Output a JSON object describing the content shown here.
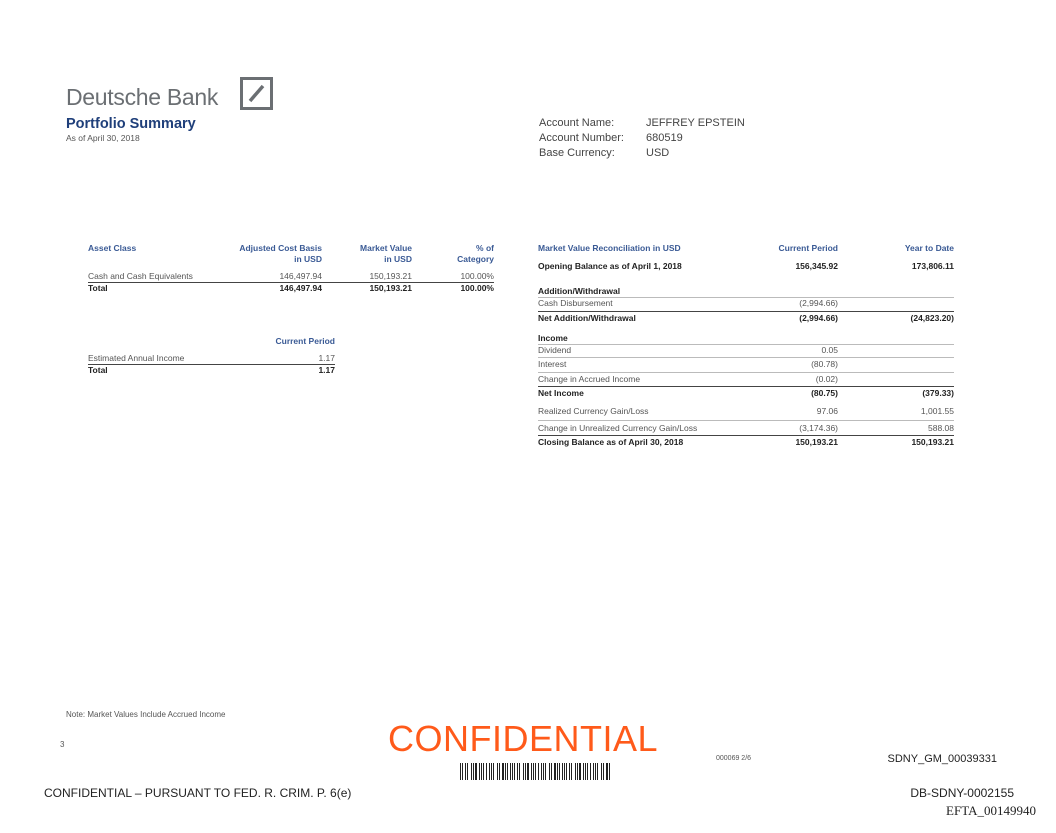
{
  "brand": {
    "name": "Deutsche Bank",
    "logo_icon": "deutsche-bank-slash-box"
  },
  "header": {
    "title": "Portfolio Summary",
    "as_of": "As of April 30, 2018"
  },
  "account": {
    "name_label": "Account Name:",
    "name_value": "JEFFREY EPSTEIN",
    "number_label": "Account Number:",
    "number_value": "680519",
    "currency_label": "Base Currency:",
    "currency_value": "USD"
  },
  "asset_table": {
    "headers": {
      "asset_class": "Asset Class",
      "cost_1": "Adjusted Cost Basis",
      "cost_2": "in USD",
      "mv_1": "Market Value",
      "mv_2": "in USD",
      "pct_1": "% of",
      "pct_2": "Category"
    },
    "rows": [
      {
        "label": "Cash and Cash Equivalents",
        "cost": "146,497.94",
        "mv": "150,193.21",
        "pct": "100.00%"
      }
    ],
    "total": {
      "label": "Total",
      "cost": "146,497.94",
      "mv": "150,193.21",
      "pct": "100.00%"
    }
  },
  "income_table": {
    "header": "Current Period",
    "rows": [
      {
        "label": "Estimated Annual Income",
        "value": "1.17"
      }
    ],
    "total": {
      "label": "Total",
      "value": "1.17"
    }
  },
  "reconciliation": {
    "headers": {
      "title": "Market Value Reconciliation in USD",
      "current": "Current Period",
      "ytd": "Year to Date"
    },
    "opening": {
      "label": "Opening Balance as of April 1, 2018",
      "current": "156,345.92",
      "ytd": "173,806.11"
    },
    "addition_section": "Addition/Withdrawal",
    "cash_disbursement": {
      "label": "Cash Disbursement",
      "current": "(2,994.66)"
    },
    "net_addition": {
      "label": "Net Addition/Withdrawal",
      "current": "(2,994.66)",
      "ytd": "(24,823.20)"
    },
    "income_section": "Income",
    "dividend": {
      "label": "Dividend",
      "current": "0.05"
    },
    "interest": {
      "label": "Interest",
      "current": "(80.78)"
    },
    "accrued": {
      "label": "Change in Accrued Income",
      "current": "(0.02)"
    },
    "net_income": {
      "label": "Net Income",
      "current": "(80.75)",
      "ytd": "(379.33)"
    },
    "realized": {
      "label": "Realized Currency Gain/Loss",
      "current": "97.06",
      "ytd": "1,001.55"
    },
    "unrealized": {
      "label": "Change in Unrealized Currency Gain/Loss",
      "current": "(3,174.36)",
      "ytd": "588.08"
    },
    "closing": {
      "label": "Closing Balance as of April 30, 2018",
      "current": "150,193.21",
      "ytd": "150,193.21"
    }
  },
  "footer": {
    "note": "Note: Market Values Include Accrued Income",
    "page_number": "3",
    "stamp": "CONFIDENTIAL",
    "stamp_color": "#ff5a1a",
    "doc_code": "000069 2/6",
    "bates_1": "SDNY_GM_00039331",
    "legend": "CONFIDENTIAL – PURSUANT TO FED. R. CRIM. P. 6(e)",
    "bates_2": "DB-SDNY-0002155",
    "bates_3": "EFTA_00149940"
  }
}
